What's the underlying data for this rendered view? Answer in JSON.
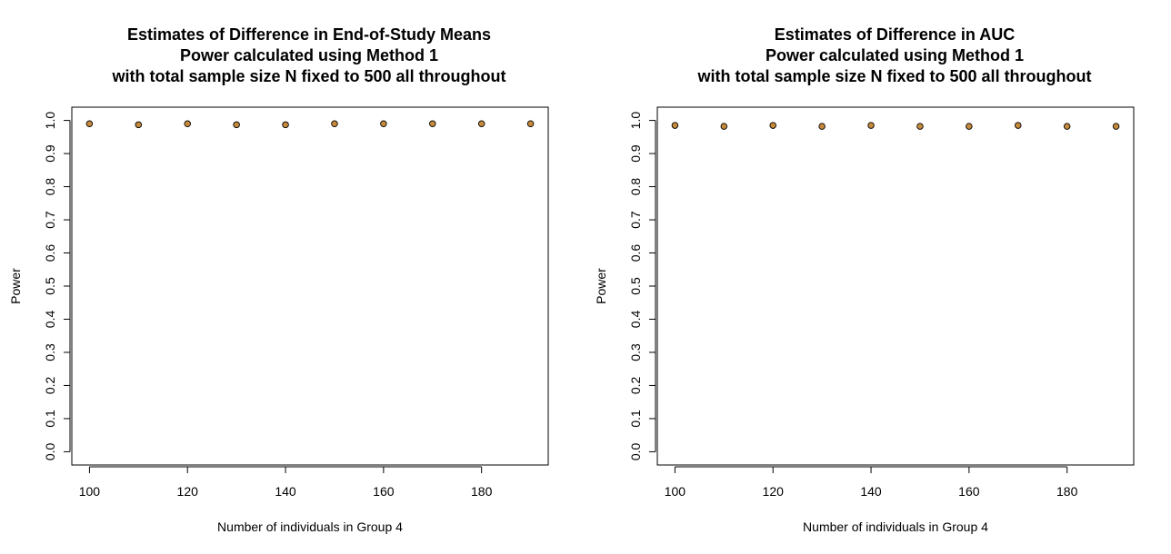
{
  "colors": {
    "point_fill": "#c68a3c",
    "point_stroke": "#000000",
    "frame": "#000000",
    "background": "#ffffff"
  },
  "chart_data": [
    {
      "type": "scatter",
      "title_lines": [
        "Estimates of Difference in End-of-Study Means",
        "Power calculated using Method 1",
        "with total sample size N fixed to 500 all throughout"
      ],
      "xlabel": "Number of individuals in Group 4",
      "ylabel": "Power",
      "xlim": [
        96.4,
        193.6
      ],
      "ylim": [
        -0.04,
        1.04
      ],
      "xticks": [
        100,
        120,
        140,
        160,
        180
      ],
      "yticks": [
        0.0,
        0.1,
        0.2,
        0.3,
        0.4,
        0.5,
        0.6,
        0.7,
        0.8,
        0.9,
        1.0
      ],
      "ytick_labels": [
        "0.0",
        "0.1",
        "0.2",
        "0.3",
        "0.4",
        "0.5",
        "0.6",
        "0.7",
        "0.8",
        "0.9",
        "1.0"
      ],
      "grid": false,
      "x": [
        100,
        110,
        120,
        130,
        140,
        150,
        160,
        170,
        180,
        190
      ],
      "y": [
        0.99,
        0.987,
        0.99,
        0.987,
        0.987,
        0.99,
        0.99,
        0.99,
        0.99,
        0.99
      ]
    },
    {
      "type": "scatter",
      "title_lines": [
        "Estimates of Difference in AUC",
        "Power calculated using Method 1",
        "with total sample size N fixed to 500 all throughout"
      ],
      "xlabel": "Number of individuals in Group 4",
      "ylabel": "Power",
      "xlim": [
        96.4,
        193.6
      ],
      "ylim": [
        -0.04,
        1.04
      ],
      "xticks": [
        100,
        120,
        140,
        160,
        180
      ],
      "yticks": [
        0.0,
        0.1,
        0.2,
        0.3,
        0.4,
        0.5,
        0.6,
        0.7,
        0.8,
        0.9,
        1.0
      ],
      "ytick_labels": [
        "0.0",
        "0.1",
        "0.2",
        "0.3",
        "0.4",
        "0.5",
        "0.6",
        "0.7",
        "0.8",
        "0.9",
        "1.0"
      ],
      "grid": false,
      "x": [
        100,
        110,
        120,
        130,
        140,
        150,
        160,
        170,
        180,
        190
      ],
      "y": [
        0.985,
        0.982,
        0.985,
        0.982,
        0.985,
        0.982,
        0.982,
        0.985,
        0.982,
        0.982
      ]
    }
  ]
}
